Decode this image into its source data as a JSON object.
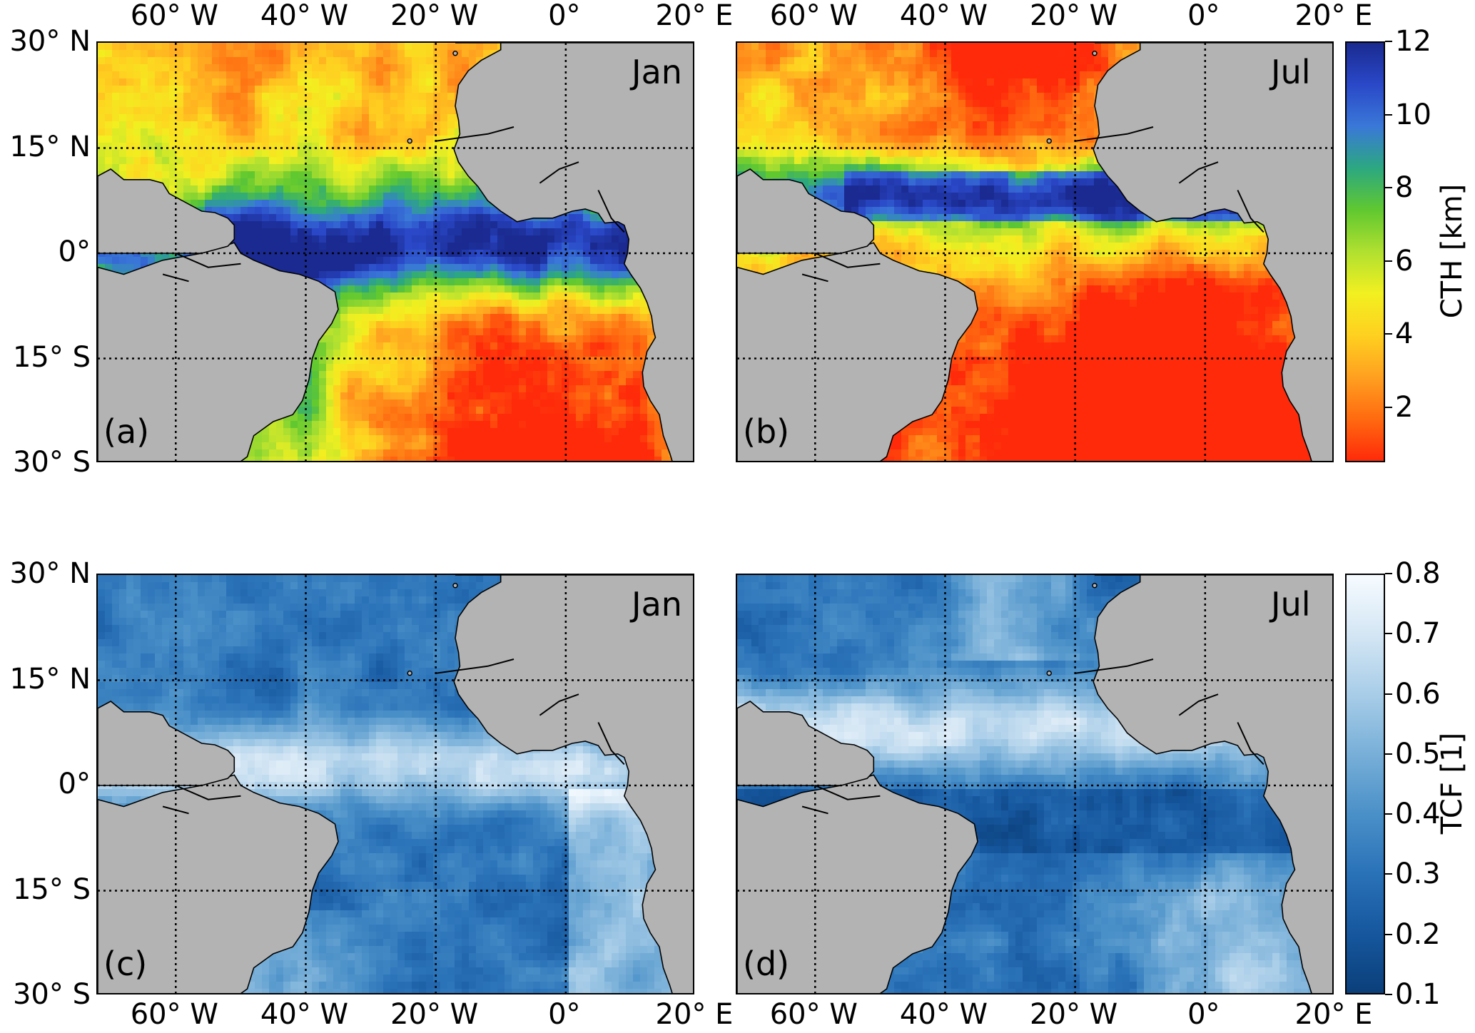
{
  "figure": {
    "x_tick_labels": [
      "60° W",
      "40° W",
      "20° W",
      "0°",
      "20° E"
    ],
    "y_tick_labels": [
      "30° N",
      "15° N",
      "0°",
      "15° S",
      "30° S"
    ],
    "panels": [
      {
        "id": "a",
        "letter": "(a)",
        "month": "Jan",
        "variable": "CTH"
      },
      {
        "id": "b",
        "letter": "(b)",
        "month": "Jul",
        "variable": "CTH"
      },
      {
        "id": "c",
        "letter": "(c)",
        "month": "Jan",
        "variable": "TCF"
      },
      {
        "id": "d",
        "letter": "(d)",
        "month": "Jul",
        "variable": "TCF"
      }
    ],
    "colorbars": [
      {
        "id": "cth",
        "label": "CTH [km]",
        "ticks": [
          "12",
          "10",
          "8",
          "6",
          "4",
          "2"
        ],
        "range": [
          0.5,
          12
        ],
        "tick_values": [
          12,
          10,
          8,
          6,
          4,
          2
        ],
        "colors": [
          "#ff2a0a",
          "#ff6a10",
          "#ffa020",
          "#ffd020",
          "#f2f020",
          "#b0e030",
          "#60c830",
          "#2ca880",
          "#3a78d8",
          "#2a48c8",
          "#1a2a90"
        ]
      },
      {
        "id": "tcf",
        "label": "TCF [1]",
        "ticks": [
          "0.8",
          "0.7",
          "0.6",
          "0.5",
          "0.4",
          "0.3",
          "0.2",
          "0.1"
        ],
        "range": [
          0.1,
          0.8
        ],
        "tick_values": [
          0.8,
          0.7,
          0.6,
          0.5,
          0.4,
          0.3,
          0.2,
          0.1
        ],
        "colors": [
          "#0b3f7a",
          "#16579e",
          "#2a72b8",
          "#4a90c8",
          "#78afd8",
          "#a8cde8",
          "#d4e6f4",
          "#f6fbff"
        ]
      }
    ],
    "land_color": "#b3b3b3",
    "map_extent": {
      "lon": [
        -72,
        20
      ],
      "lat": [
        -30,
        30
      ]
    }
  }
}
